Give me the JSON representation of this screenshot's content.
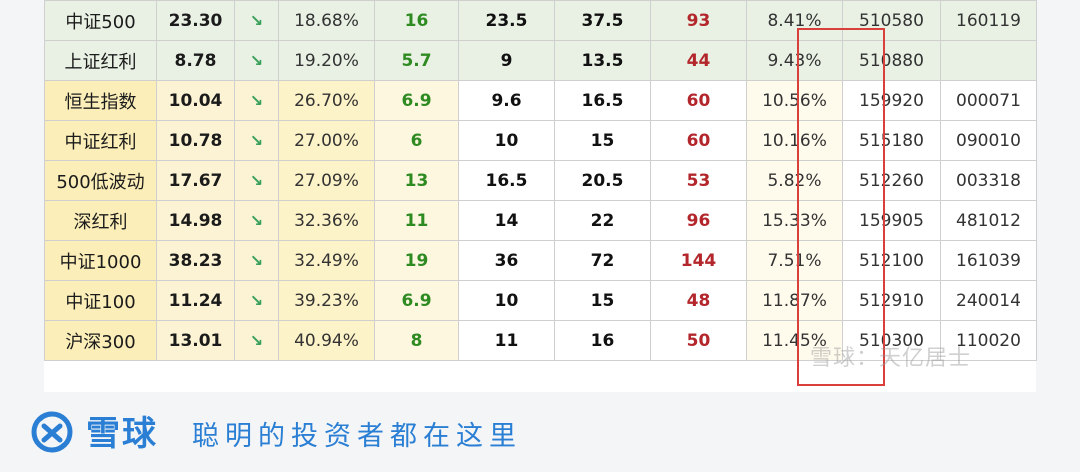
{
  "rows": [
    {
      "name": "中证500",
      "pe": "23.30",
      "arrow": "↘",
      "pct": "18.68%",
      "low": "16",
      "mid1": "23.5",
      "mid2": "37.5",
      "high": "93",
      "yield": "8.41%",
      "code1": "510580",
      "code2": "160119",
      "tint": "green"
    },
    {
      "name": "上证红利",
      "pe": "8.78",
      "arrow": "↘",
      "pct": "19.20%",
      "low": "5.7",
      "mid1": "9",
      "mid2": "13.5",
      "high": "44",
      "yield": "9.43%",
      "code1": "510880",
      "code2": "",
      "tint": "green"
    },
    {
      "name": "恒生指数",
      "pe": "10.04",
      "arrow": "↘",
      "pct": "26.70%",
      "low": "6.9",
      "mid1": "9.6",
      "mid2": "16.5",
      "high": "60",
      "yield": "10.56%",
      "code1": "159920",
      "code2": "000071",
      "tint": "yellow"
    },
    {
      "name": "中证红利",
      "pe": "10.78",
      "arrow": "↘",
      "pct": "27.00%",
      "low": "6",
      "mid1": "10",
      "mid2": "15",
      "high": "60",
      "yield": "10.16%",
      "code1": "515180",
      "code2": "090010",
      "tint": "yellow"
    },
    {
      "name": "500低波动",
      "pe": "17.67",
      "arrow": "↘",
      "pct": "27.09%",
      "low": "13",
      "mid1": "16.5",
      "mid2": "20.5",
      "high": "53",
      "yield": "5.82%",
      "code1": "512260",
      "code2": "003318",
      "tint": "yellow"
    },
    {
      "name": "深红利",
      "pe": "14.98",
      "arrow": "↘",
      "pct": "32.36%",
      "low": "11",
      "mid1": "14",
      "mid2": "22",
      "high": "96",
      "yield": "15.33%",
      "code1": "159905",
      "code2": "481012",
      "tint": "yellow"
    },
    {
      "name": "中证1000",
      "pe": "38.23",
      "arrow": "↘",
      "pct": "32.49%",
      "low": "19",
      "mid1": "36",
      "mid2": "72",
      "high": "144",
      "yield": "7.51%",
      "code1": "512100",
      "code2": "161039",
      "tint": "yellow"
    },
    {
      "name": "中证100",
      "pe": "11.24",
      "arrow": "↘",
      "pct": "39.23%",
      "low": "6.9",
      "mid1": "10",
      "mid2": "15",
      "high": "48",
      "yield": "11.87%",
      "code1": "512910",
      "code2": "240014",
      "tint": "yellow"
    },
    {
      "name": "沪深300",
      "pe": "13.01",
      "arrow": "↘",
      "pct": "40.94%",
      "low": "8",
      "mid1": "11",
      "mid2": "16",
      "high": "50",
      "yield": "11.45%",
      "code1": "510300",
      "code2": "110020",
      "tint": "yellow"
    }
  ],
  "watermark": "雪球：天亿居士",
  "footer": {
    "brand": "雪球",
    "slogan": "聪明的投资者都在这里",
    "logo_icon": "snowball-logo-icon",
    "brand_color": "#2a7fd4"
  },
  "highlight_color": "#d9403c"
}
